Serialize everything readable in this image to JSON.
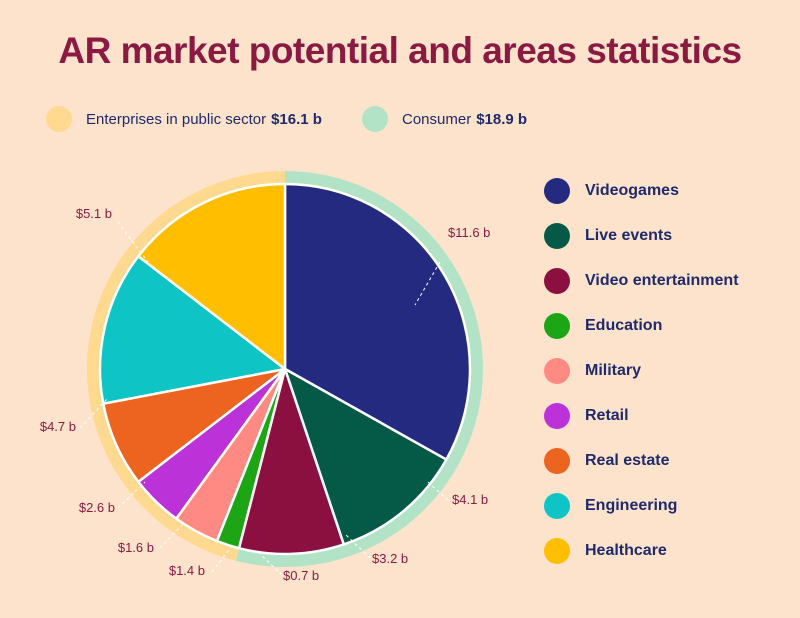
{
  "title": "AR market potential and areas statistics",
  "segments": [
    {
      "label": "Enterprises in public sector",
      "value": "$16.1 b",
      "color": "#ffd98f"
    },
    {
      "label": "Consumer",
      "value": "$18.9 b",
      "color": "#b3e3c7"
    }
  ],
  "chart_data": {
    "type": "pie",
    "unit": "$ b",
    "slices": [
      {
        "name": "Videogames",
        "value": 11.6,
        "label": "$11.6 b",
        "color": "#242a80"
      },
      {
        "name": "Live events",
        "value": 4.1,
        "label": "$4.1 b",
        "color": "#045a47"
      },
      {
        "name": "Video entertainment",
        "value": 3.2,
        "label": "$3.2 b",
        "color": "#8b1040"
      },
      {
        "name": "Education",
        "value": 0.7,
        "label": "$0.7 b",
        "color": "#1da515"
      },
      {
        "name": "Military",
        "value": 1.4,
        "label": "$1.4 b",
        "color": "#ff8a84"
      },
      {
        "name": "Retail",
        "value": 1.6,
        "label": "$1.6 b",
        "color": "#bb32d9"
      },
      {
        "name": "Real estate",
        "value": 2.6,
        "label": "$2.6 b",
        "color": "#ed6420"
      },
      {
        "name": "Engineering",
        "value": 4.7,
        "label": "$4.7 b",
        "color": "#0fc4c4"
      },
      {
        "name": "Healthcare",
        "value": 5.1,
        "label": "$5.1 b",
        "color": "#ffbe00"
      }
    ],
    "legend_position": "right",
    "outer_ring": [
      {
        "segment": "Consumer",
        "value": 18.9,
        "color": "#b3e3c7"
      },
      {
        "segment": "Enterprises in public sector",
        "value": 16.1,
        "color": "#ffd98f"
      }
    ]
  }
}
